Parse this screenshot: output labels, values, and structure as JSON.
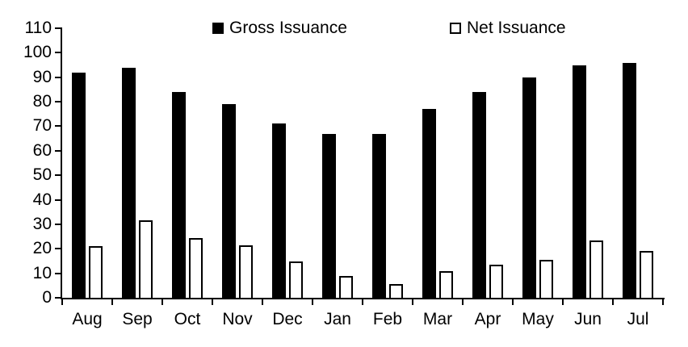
{
  "chart_data": {
    "type": "bar",
    "title": "",
    "xlabel": "",
    "ylabel": "",
    "categories": [
      "Aug",
      "Sep",
      "Oct",
      "Nov",
      "Dec",
      "Jan",
      "Feb",
      "Mar",
      "Apr",
      "May",
      "Jun",
      "Jul"
    ],
    "series": [
      {
        "name": "Gross Issuance",
        "style": "solid",
        "fill_color": "#000000",
        "values": [
          92,
          94,
          84,
          79,
          71,
          67,
          67,
          77,
          84,
          90,
          95,
          96
        ]
      },
      {
        "name": "Net Issuance",
        "style": "outline",
        "fill_color": "#ffffff",
        "border_color": "#000000",
        "values": [
          21,
          31.5,
          24.5,
          21.5,
          15,
          9,
          5.5,
          11,
          13.5,
          15.5,
          23.5,
          19
        ]
      }
    ],
    "ylim": [
      0,
      110
    ],
    "yticks": [
      0,
      10,
      20,
      30,
      40,
      50,
      60,
      70,
      80,
      90,
      100,
      110
    ],
    "grid": false,
    "legend_position": "top",
    "axis_color": "#000000",
    "background_color": "#ffffff"
  }
}
